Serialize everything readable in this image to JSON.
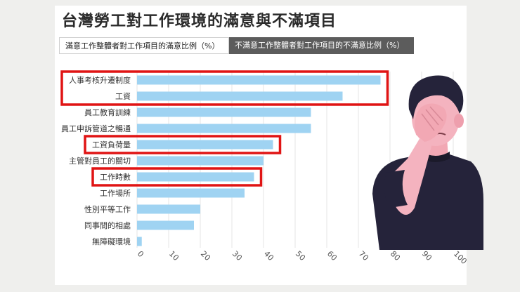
{
  "title": "台灣勞工對工作環境的滿意與不滿項目",
  "tabs": [
    {
      "label": "滿意工作整體者對工作項目的滿意比例（%）",
      "active": true
    },
    {
      "label": "不滿意工作整體者對工作項目的不滿意比例（%）",
      "active": false
    }
  ],
  "colors": {
    "bar": "#9fd3f2",
    "highlight": "#e01414",
    "grid": "#e6e6e6"
  },
  "chart_data": {
    "type": "bar",
    "orientation": "horizontal",
    "categories": [
      "人事考核升遷制度",
      "工資",
      "員工教育訓練",
      "員工申訴管道之暢通",
      "工資負荷量",
      "主管對員工的關切",
      "工作時數",
      "工作場所",
      "性別平等工作",
      "同事間的相處",
      "無障礙環境"
    ],
    "values": [
      77,
      65,
      55,
      55,
      43,
      40,
      37,
      34,
      20,
      18,
      1.5
    ],
    "xlim": [
      0,
      100
    ],
    "xticks": [
      0,
      10,
      20,
      30,
      40,
      50,
      60,
      70,
      80,
      90,
      100
    ],
    "highlighted": [
      "人事考核升遷制度",
      "工資",
      "工資負荷量",
      "工作時數"
    ],
    "grid": true
  }
}
